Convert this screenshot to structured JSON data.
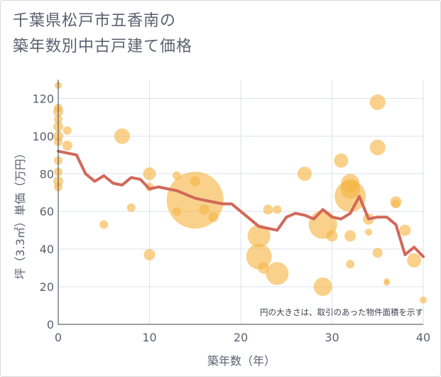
{
  "chart_data": {
    "type": "scatter",
    "title_line1": "千葉県松戸市五香南の",
    "title_line2": "築年数別中古戸建て価格",
    "xlabel": "築年数（年）",
    "ylabel": "坪（3.3㎡）単価（万円）",
    "xlim": [
      0,
      40
    ],
    "ylim": [
      0,
      130
    ],
    "xticks": [
      "0",
      "10",
      "20",
      "30",
      "40"
    ],
    "yticks": [
      "0",
      "20",
      "40",
      "60",
      "80",
      "100",
      "120"
    ],
    "annotation": "円の大きさは、取引のあった物件面積を示す",
    "colors": {
      "bubble": "#f5b544",
      "line": "#d2685a",
      "grid": "#dde3ea"
    },
    "points": [
      {
        "x": 0,
        "y": 127,
        "s": 5
      },
      {
        "x": 0,
        "y": 115,
        "s": 6
      },
      {
        "x": 0,
        "y": 113,
        "s": 7
      },
      {
        "x": 0,
        "y": 109,
        "s": 6
      },
      {
        "x": 0,
        "y": 105,
        "s": 7
      },
      {
        "x": 0,
        "y": 100,
        "s": 7
      },
      {
        "x": 0,
        "y": 97,
        "s": 6
      },
      {
        "x": 0,
        "y": 87,
        "s": 6
      },
      {
        "x": 0,
        "y": 81,
        "s": 6
      },
      {
        "x": 0,
        "y": 76,
        "s": 7
      },
      {
        "x": 0,
        "y": 73,
        "s": 6
      },
      {
        "x": 1,
        "y": 103,
        "s": 6
      },
      {
        "x": 1,
        "y": 95,
        "s": 7
      },
      {
        "x": 5,
        "y": 53,
        "s": 6
      },
      {
        "x": 7,
        "y": 100,
        "s": 11
      },
      {
        "x": 8,
        "y": 62,
        "s": 6
      },
      {
        "x": 10,
        "y": 80,
        "s": 9
      },
      {
        "x": 10,
        "y": 73,
        "s": 6
      },
      {
        "x": 10,
        "y": 37,
        "s": 8
      },
      {
        "x": 13,
        "y": 79,
        "s": 6
      },
      {
        "x": 13,
        "y": 60,
        "s": 6
      },
      {
        "x": 15,
        "y": 66,
        "s": 40
      },
      {
        "x": 15,
        "y": 76,
        "s": 7
      },
      {
        "x": 16,
        "y": 61,
        "s": 7
      },
      {
        "x": 17,
        "y": 57,
        "s": 7
      },
      {
        "x": 22,
        "y": 47,
        "s": 16
      },
      {
        "x": 22,
        "y": 36,
        "s": 18
      },
      {
        "x": 22.5,
        "y": 30,
        "s": 8
      },
      {
        "x": 23,
        "y": 61,
        "s": 7
      },
      {
        "x": 24,
        "y": 61,
        "s": 6
      },
      {
        "x": 24,
        "y": 27,
        "s": 16
      },
      {
        "x": 27,
        "y": 80,
        "s": 10
      },
      {
        "x": 29,
        "y": 53,
        "s": 20
      },
      {
        "x": 29,
        "y": 20,
        "s": 13
      },
      {
        "x": 30,
        "y": 47,
        "s": 8
      },
      {
        "x": 31,
        "y": 87,
        "s": 10
      },
      {
        "x": 32,
        "y": 75,
        "s": 13
      },
      {
        "x": 32,
        "y": 72,
        "s": 14
      },
      {
        "x": 32,
        "y": 68,
        "s": 22
      },
      {
        "x": 32,
        "y": 47,
        "s": 8
      },
      {
        "x": 32,
        "y": 32,
        "s": 6
      },
      {
        "x": 34,
        "y": 56,
        "s": 8
      },
      {
        "x": 34,
        "y": 49,
        "s": 5
      },
      {
        "x": 35,
        "y": 118,
        "s": 11
      },
      {
        "x": 35,
        "y": 94,
        "s": 11
      },
      {
        "x": 35,
        "y": 38,
        "s": 7
      },
      {
        "x": 36,
        "y": 23,
        "s": 4
      },
      {
        "x": 36,
        "y": 22,
        "s": 4
      },
      {
        "x": 37,
        "y": 65,
        "s": 8
      },
      {
        "x": 37,
        "y": 64,
        "s": 6
      },
      {
        "x": 38,
        "y": 50,
        "s": 8
      },
      {
        "x": 39,
        "y": 34,
        "s": 10
      },
      {
        "x": 40,
        "y": 13,
        "s": 5
      }
    ],
    "trend": [
      [
        0,
        92
      ],
      [
        1,
        91
      ],
      [
        2,
        90
      ],
      [
        3,
        80
      ],
      [
        4,
        76
      ],
      [
        5,
        79
      ],
      [
        6,
        75
      ],
      [
        7,
        74
      ],
      [
        8,
        78
      ],
      [
        9,
        77
      ],
      [
        10,
        72
      ],
      [
        11,
        73
      ],
      [
        12,
        72
      ],
      [
        13,
        71
      ],
      [
        14,
        69
      ],
      [
        15,
        67
      ],
      [
        16,
        66
      ],
      [
        17,
        65
      ],
      [
        18,
        64
      ],
      [
        19,
        64
      ],
      [
        20,
        60
      ],
      [
        21,
        56
      ],
      [
        22,
        52
      ],
      [
        23,
        51
      ],
      [
        24,
        50
      ],
      [
        25,
        57
      ],
      [
        26,
        59
      ],
      [
        27,
        58
      ],
      [
        28,
        56
      ],
      [
        29,
        61
      ],
      [
        30,
        57
      ],
      [
        31,
        56
      ],
      [
        32,
        59
      ],
      [
        33,
        68
      ],
      [
        34,
        56
      ],
      [
        35,
        57
      ],
      [
        36,
        57
      ],
      [
        37,
        53
      ],
      [
        38,
        37
      ],
      [
        39,
        41
      ],
      [
        40,
        36
      ]
    ]
  }
}
